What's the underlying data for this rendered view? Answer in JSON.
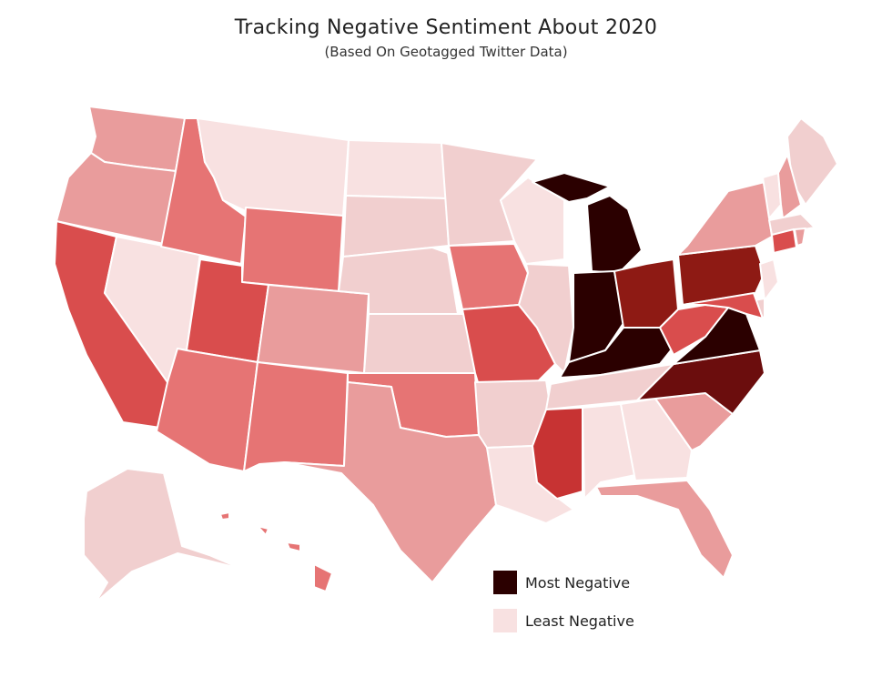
{
  "title": "Tracking Negative Sentiment About 2020",
  "subtitle": "(Based On Geotagged Twitter Data)",
  "legend": {
    "most": {
      "label": "Most Negative",
      "color": "#2b0000"
    },
    "least": {
      "label": "Least Negative",
      "color": "#f8e1e1"
    }
  },
  "palette": {
    "1": "#f8e1e1",
    "2": "#f1cfcf",
    "3": "#e99c9c",
    "4": "#e67474",
    "5": "#d94d4d",
    "6": "#c73333",
    "7": "#8e1a14",
    "8": "#6b0d0d",
    "9": "#2b0000"
  },
  "states": {
    "WA": 3,
    "OR": 3,
    "CA": 5,
    "NV": 1,
    "ID": 4,
    "MT": 1,
    "WY": 4,
    "UT": 5,
    "AZ": 4,
    "CO": 3,
    "NM": 4,
    "ND": 1,
    "SD": 2,
    "NE": 2,
    "KS": 2,
    "OK": 4,
    "TX": 3,
    "MN": 2,
    "IA": 4,
    "MO": 5,
    "AR": 2,
    "LA": 1,
    "WI": 1,
    "IL": 2,
    "MI": 9,
    "IN": 9,
    "OH": 7,
    "KY": 9,
    "TN": 2,
    "MS": 6,
    "AL": 1,
    "GA": 1,
    "FL": 3,
    "SC": 3,
    "NC": 8,
    "VA": 9,
    "WV": 5,
    "PA": 7,
    "NY": 3,
    "ME": 2,
    "VT": 1,
    "NH": 3,
    "MA": 2,
    "CT": 5,
    "RI": 3,
    "NJ": 1,
    "DE": 2,
    "MD": 5,
    "AK": 2,
    "HI": 4
  }
}
